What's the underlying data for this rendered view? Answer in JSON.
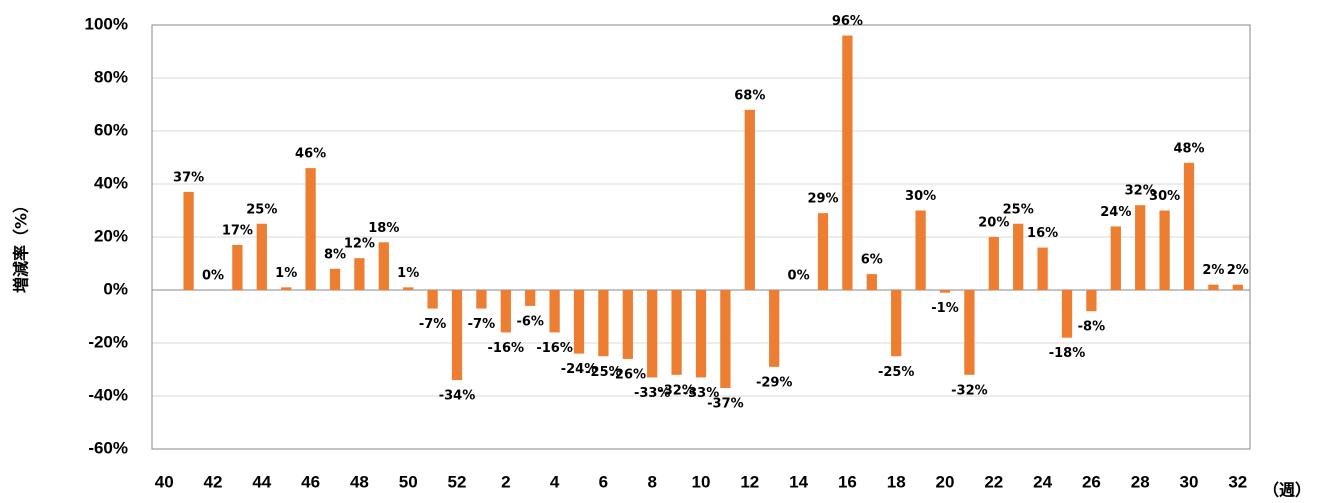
{
  "chart_data": {
    "type": "bar",
    "y_label": "増減率（%）",
    "x_label": "（週）",
    "categories": [
      "40",
      null,
      "42",
      null,
      "44",
      null,
      "46",
      null,
      "48",
      null,
      "50",
      null,
      "52",
      null,
      "2",
      null,
      "4",
      null,
      "6",
      null,
      "8",
      null,
      "10",
      null,
      "12",
      null,
      "14",
      null,
      "16",
      null,
      "18",
      null,
      "20",
      null,
      "22",
      null,
      "24",
      null,
      "26",
      null,
      "28",
      null,
      "30",
      null,
      "32"
    ],
    "values": [
      null,
      37,
      0,
      17,
      25,
      1,
      46,
      8,
      12,
      18,
      1,
      -7,
      -34,
      -7,
      -16,
      -6,
      -16,
      -24,
      -25,
      -26,
      -33,
      -32,
      -33,
      -37,
      68,
      -29,
      0,
      29,
      96,
      6,
      -25,
      30,
      -1,
      -32,
      20,
      25,
      16,
      -18,
      -8,
      24,
      32,
      30,
      48,
      2,
      2
    ],
    "value_labels": [
      null,
      "37%",
      "0%",
      "17%",
      "25%",
      "1%",
      "46%",
      "8%",
      "12%",
      "18%",
      "1%",
      "-7%",
      "-34%",
      "-7%",
      "-16%",
      "-6%",
      "-16%",
      "-24%",
      "-25%",
      "-26%",
      "-33%",
      "-32%",
      "-33%",
      "-37%",
      "68%",
      "-29%",
      "0%",
      "29%",
      "96%",
      "6%",
      "-25%",
      "30%",
      "-1%",
      "-32%",
      "20%",
      "25%",
      "16%",
      "-18%",
      "-8%",
      "24%",
      "32%",
      "30%",
      "48%",
      "2%",
      "2%"
    ],
    "color": "#ed7d31",
    "ylim": [
      -60,
      100
    ],
    "yticks": [
      {
        "value": -60,
        "label": "-60%"
      },
      {
        "value": -40,
        "label": "-40%"
      },
      {
        "value": -20,
        "label": "-20%"
      },
      {
        "value": 0,
        "label": "0%"
      },
      {
        "value": 20,
        "label": "20%"
      },
      {
        "value": 40,
        "label": "40%"
      },
      {
        "value": 60,
        "label": "60%"
      },
      {
        "value": 80,
        "label": "80%"
      },
      {
        "value": 100,
        "label": "100%"
      }
    ],
    "grid": true
  }
}
